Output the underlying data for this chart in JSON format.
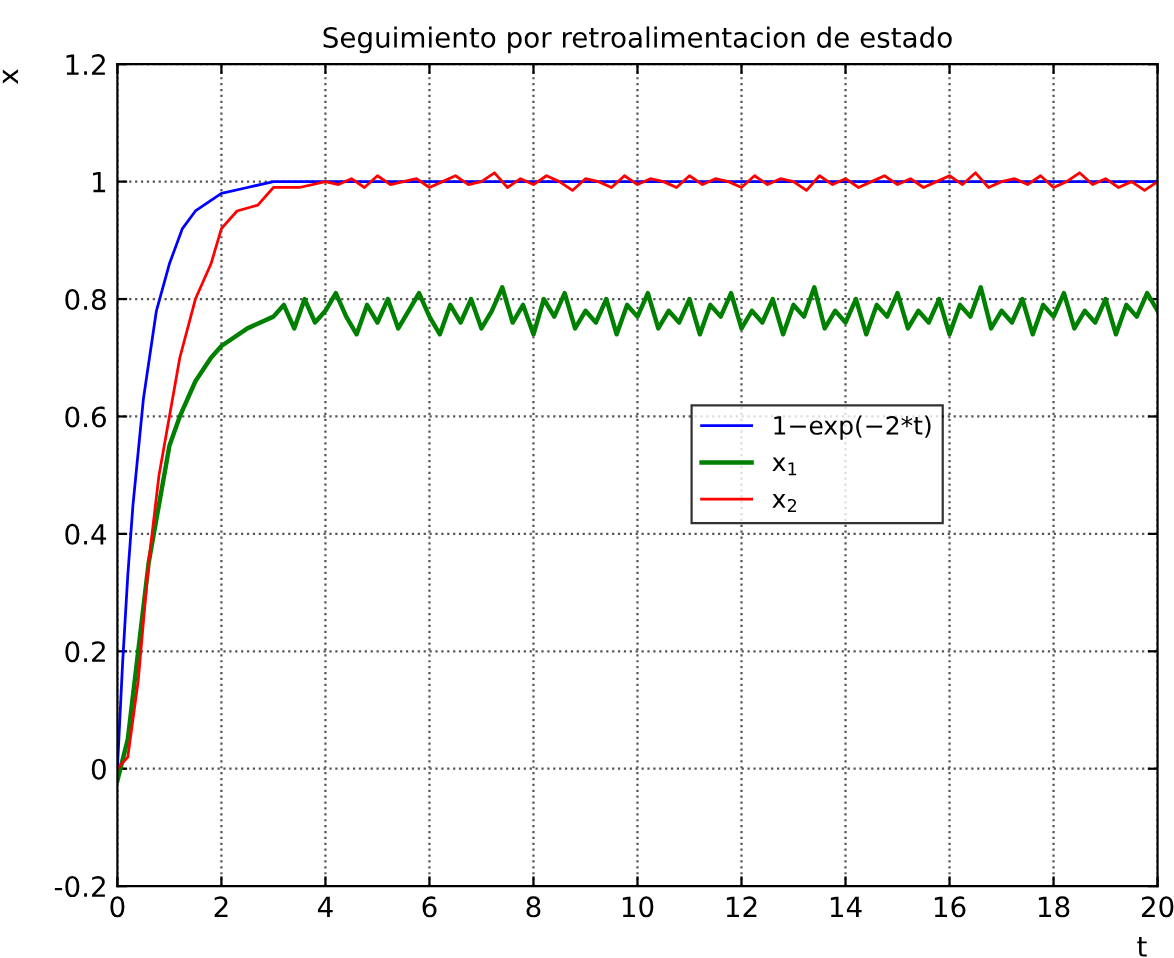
{
  "chart_data": {
    "type": "line",
    "title": "Seguimiento por retroalimentacion de estado",
    "xlabel": "t",
    "ylabel": "x",
    "xlim": [
      0,
      20
    ],
    "ylim": [
      -0.2,
      1.2
    ],
    "xticks": [
      0,
      2,
      4,
      6,
      8,
      10,
      12,
      14,
      16,
      18,
      20
    ],
    "yticks": [
      -0.2,
      0,
      0.2,
      0.4,
      0.6,
      0.8,
      1,
      1.2
    ],
    "grid": true,
    "legend": "right",
    "series": [
      {
        "name": "1−exp(−2*t)",
        "color": "#0000ff",
        "x": [
          0,
          0.1,
          0.2,
          0.3,
          0.5,
          0.75,
          1,
          1.25,
          1.5,
          2,
          2.5,
          3,
          4,
          5,
          6,
          20
        ],
        "values": [
          0,
          0.18,
          0.33,
          0.45,
          0.63,
          0.78,
          0.86,
          0.92,
          0.95,
          0.98,
          0.99,
          1.0,
          1.0,
          1.0,
          1.0,
          1.0
        ]
      },
      {
        "name": "x$_{1}$",
        "color": "#008000",
        "x": [
          0,
          0.2,
          0.4,
          0.6,
          0.8,
          1.0,
          1.2,
          1.5,
          1.8,
          2.0,
          2.5,
          3.0,
          3.2,
          3.4,
          3.6,
          3.8,
          4.0,
          4.2,
          4.4,
          4.6,
          4.8,
          5.0,
          5.2,
          5.4,
          5.6,
          5.8,
          6.0,
          6.2,
          6.4,
          6.6,
          6.8,
          7.0,
          7.2,
          7.4,
          7.6,
          7.8,
          8.0,
          8.2,
          8.4,
          8.6,
          8.8,
          9.0,
          9.2,
          9.4,
          9.6,
          9.8,
          10.0,
          10.2,
          10.4,
          10.6,
          10.8,
          11.0,
          11.2,
          11.4,
          11.6,
          11.8,
          12.0,
          12.2,
          12.4,
          12.6,
          12.8,
          13.0,
          13.2,
          13.4,
          13.6,
          13.8,
          14.0,
          14.2,
          14.4,
          14.6,
          14.8,
          15.0,
          15.2,
          15.4,
          15.6,
          15.8,
          16.0,
          16.2,
          16.4,
          16.6,
          16.8,
          17.0,
          17.2,
          17.4,
          17.6,
          17.8,
          18.0,
          18.2,
          18.4,
          18.6,
          18.8,
          19.0,
          19.2,
          19.4,
          19.6,
          19.8,
          20.0
        ],
        "values": [
          -0.02,
          0.05,
          0.2,
          0.35,
          0.45,
          0.55,
          0.6,
          0.66,
          0.7,
          0.72,
          0.75,
          0.77,
          0.79,
          0.75,
          0.8,
          0.76,
          0.78,
          0.81,
          0.77,
          0.74,
          0.79,
          0.76,
          0.8,
          0.75,
          0.78,
          0.81,
          0.77,
          0.74,
          0.79,
          0.76,
          0.8,
          0.75,
          0.78,
          0.82,
          0.76,
          0.79,
          0.74,
          0.8,
          0.77,
          0.81,
          0.75,
          0.78,
          0.76,
          0.8,
          0.74,
          0.79,
          0.77,
          0.81,
          0.75,
          0.78,
          0.76,
          0.8,
          0.74,
          0.79,
          0.77,
          0.81,
          0.75,
          0.78,
          0.76,
          0.8,
          0.74,
          0.79,
          0.77,
          0.82,
          0.75,
          0.78,
          0.76,
          0.8,
          0.74,
          0.79,
          0.77,
          0.81,
          0.75,
          0.78,
          0.76,
          0.8,
          0.74,
          0.79,
          0.77,
          0.82,
          0.75,
          0.78,
          0.76,
          0.8,
          0.74,
          0.79,
          0.77,
          0.81,
          0.75,
          0.78,
          0.76,
          0.8,
          0.74,
          0.79,
          0.77,
          0.81,
          0.78
        ]
      },
      {
        "name": "x$_{2}$",
        "color": "#ff0000",
        "x": [
          0,
          0.2,
          0.4,
          0.6,
          0.8,
          1.0,
          1.2,
          1.5,
          1.8,
          2.0,
          2.3,
          2.7,
          3.0,
          3.5,
          4,
          4.25,
          4.5,
          4.75,
          5,
          5.25,
          5.5,
          5.75,
          6,
          6.25,
          6.5,
          6.75,
          7,
          7.25,
          7.5,
          7.75,
          8,
          8.25,
          8.5,
          8.75,
          9,
          9.25,
          9.5,
          9.75,
          10,
          10.25,
          10.5,
          10.75,
          11,
          11.25,
          11.5,
          11.75,
          12,
          12.25,
          12.5,
          12.75,
          13,
          13.25,
          13.5,
          13.75,
          14,
          14.25,
          14.5,
          14.75,
          15,
          15.25,
          15.5,
          15.75,
          16,
          16.25,
          16.5,
          16.75,
          17,
          17.25,
          17.5,
          17.75,
          18,
          18.25,
          18.5,
          18.75,
          19,
          19.25,
          19.5,
          19.75,
          20
        ],
        "values": [
          0,
          0.02,
          0.15,
          0.35,
          0.5,
          0.6,
          0.7,
          0.8,
          0.86,
          0.92,
          0.95,
          0.96,
          0.99,
          0.99,
          1.0,
          0.995,
          1.005,
          0.99,
          1.01,
          0.995,
          1.0,
          1.005,
          0.99,
          1.0,
          1.01,
          0.995,
          1.0,
          1.015,
          0.99,
          1.005,
          0.995,
          1.01,
          1.0,
          0.985,
          1.005,
          1.0,
          0.99,
          1.01,
          0.995,
          1.005,
          1.0,
          0.99,
          1.01,
          0.995,
          1.005,
          1.0,
          0.99,
          1.01,
          0.995,
          1.005,
          1.0,
          0.985,
          1.01,
          0.995,
          1.005,
          0.99,
          1.0,
          1.01,
          0.995,
          1.005,
          0.99,
          1.0,
          1.01,
          0.995,
          1.015,
          0.99,
          1.0,
          1.005,
          0.995,
          1.01,
          0.99,
          1.0,
          1.015,
          0.995,
          1.005,
          0.99,
          1.0,
          0.985,
          1.0
        ]
      }
    ]
  }
}
